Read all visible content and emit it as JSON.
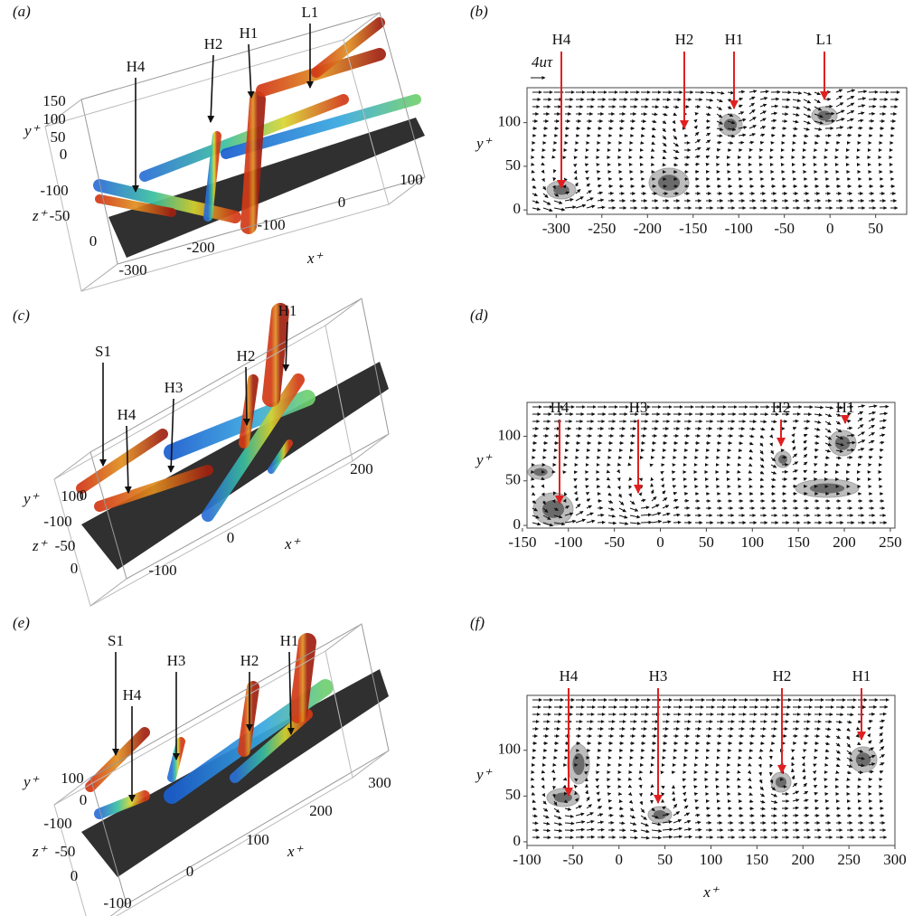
{
  "panels": [
    {
      "label": "(a)",
      "annotations": [
        "H4",
        "H2",
        "H1",
        "L1"
      ],
      "y_label": "y⁺",
      "y_ticks": [
        150,
        100,
        50,
        0
      ],
      "z_label": "z⁺",
      "z_ticks": [
        -100,
        -50,
        0
      ],
      "x_label": "x⁺",
      "x_ticks": [
        -300,
        -200,
        -100,
        0,
        100
      ]
    },
    {
      "label": "(b)",
      "scale_label": "4uτ",
      "annotations": [
        "H4",
        "H2",
        "H1",
        "L1"
      ],
      "y_label": "y⁺",
      "xlim": [
        -332,
        84
      ],
      "xticks": [
        -300,
        -250,
        -200,
        -150,
        -100,
        -50,
        0,
        50
      ],
      "ylim": [
        -5,
        140
      ],
      "yticks": [
        0,
        50,
        100
      ]
    },
    {
      "label": "(c)",
      "annotations": [
        "S1",
        "H4",
        "H3",
        "H2",
        "H1"
      ],
      "y_label": "y⁺",
      "y_ticks": [
        100,
        0
      ],
      "z_label": "z⁺",
      "z_ticks": [
        -100,
        -50,
        0
      ],
      "x_label": "x⁺",
      "x_ticks": [
        -100,
        0,
        200
      ]
    },
    {
      "label": "(d)",
      "annotations": [
        "H4",
        "H3",
        "H2",
        "H1"
      ],
      "y_label": "y⁺",
      "xlim": [
        -145,
        255
      ],
      "xticks": [
        -150,
        -100,
        -50,
        0,
        50,
        100,
        150,
        200,
        250
      ],
      "ylim": [
        -3,
        138
      ],
      "yticks": [
        0,
        50,
        100
      ]
    },
    {
      "label": "(e)",
      "annotations": [
        "S1",
        "H4",
        "H3",
        "H2",
        "H1"
      ],
      "y_label": "y⁺",
      "y_ticks": [
        100,
        0
      ],
      "z_label": "z⁺",
      "z_ticks": [
        -100,
        -50,
        0
      ],
      "x_label": "x⁺",
      "x_ticks": [
        -100,
        0,
        100,
        200,
        300
      ]
    },
    {
      "label": "(f)",
      "annotations": [
        "H4",
        "H3",
        "H2",
        "H1"
      ],
      "y_label": "y⁺",
      "x_label": "x⁺",
      "xlim": [
        -100,
        300
      ],
      "xticks": [
        -100,
        -50,
        0,
        50,
        100,
        150,
        200,
        250,
        300
      ],
      "ylim": [
        -4,
        160
      ],
      "yticks": [
        0,
        50,
        100
      ]
    }
  ]
}
